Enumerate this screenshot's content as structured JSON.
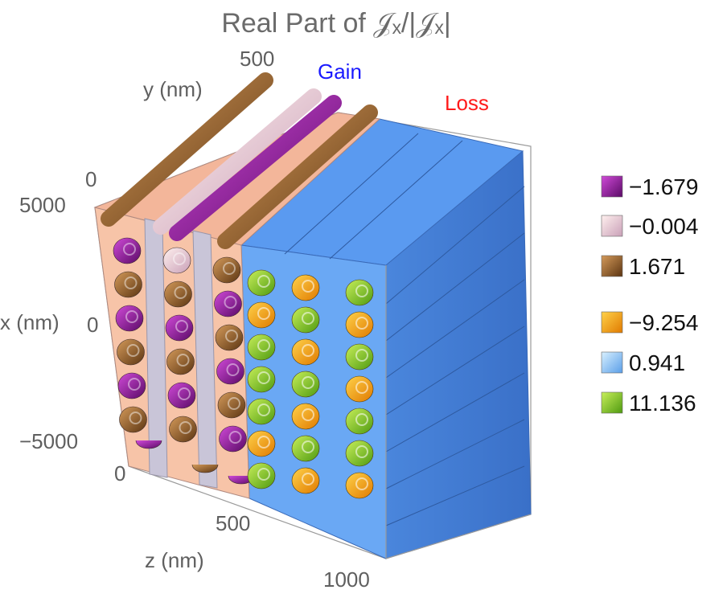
{
  "chart_data": {
    "type": "3d-tube-plot",
    "title": "Real Part of 𝒥ₓ/|𝒥ₓ|",
    "axes": {
      "x": {
        "label": "x (nm)",
        "ticks": [
          "5000",
          "0",
          "−5000"
        ]
      },
      "y": {
        "label": "y (nm)",
        "ticks": [
          "0",
          "500"
        ]
      },
      "z": {
        "label": "z (nm)",
        "ticks": [
          "0",
          "500",
          "1000"
        ]
      }
    },
    "region_labels": [
      {
        "text": "Gain",
        "color": "#1a1aff"
      },
      {
        "text": "Loss",
        "color": "#ff1a1a"
      }
    ],
    "legend": {
      "placement": "right",
      "groups": [
        {
          "region": "Gain",
          "entries": [
            {
              "value": "−1.679",
              "color": "#7a0f84"
            },
            {
              "value": "−0.004",
              "color": "#f0c4c4"
            },
            {
              "value": "1.671",
              "color": "#8b5a2b"
            }
          ]
        },
        {
          "region": "Loss",
          "entries": [
            {
              "value": "−9.254",
              "color": "#f5a11c"
            },
            {
              "value": "0.941",
              "color": "#7fb8f0"
            },
            {
              "value": "11.136",
              "color": "#7fc21e"
            }
          ]
        }
      ]
    }
  }
}
